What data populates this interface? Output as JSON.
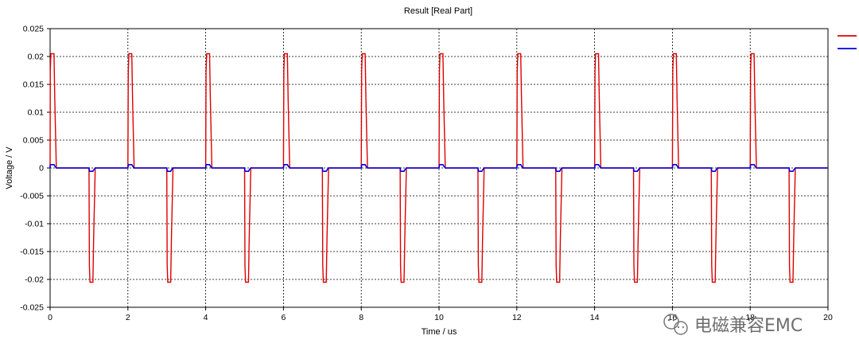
{
  "chart_data": {
    "type": "line",
    "title": "Result [Real Part]",
    "xlabel": "Time / us",
    "ylabel": "Voltage / V",
    "xlim": [
      0,
      20
    ],
    "ylim": [
      -0.025,
      0.025
    ],
    "x_ticks": [
      "0",
      "2",
      "4",
      "6",
      "8",
      "10",
      "12",
      "14",
      "16",
      "18",
      "20"
    ],
    "y_ticks": [
      "0.025",
      "0.02",
      "0.015",
      "0.01",
      "0.005",
      "0",
      "-0.005",
      "-0.01",
      "-0.015",
      "-0.02",
      "-0.025"
    ],
    "grid": true,
    "legend": "top-right",
    "series": [
      {
        "color": "#e00000",
        "pulse_period_us": 2,
        "positive_pulse_starts_us": [
          0,
          2,
          4,
          6,
          8,
          10,
          12,
          14,
          16,
          18
        ],
        "negative_pulse_starts_us": [
          1,
          3,
          5,
          7,
          9,
          11,
          13,
          15,
          17,
          19
        ],
        "pulse_width_us": 0.12,
        "amplitude": 0.0205,
        "baseline": 0
      },
      {
        "color": "#0000e0",
        "pulse_period_us": 2,
        "positive_pulse_starts_us": [
          0,
          2,
          4,
          6,
          8,
          10,
          12,
          14,
          16,
          18
        ],
        "negative_pulse_starts_us": [
          1,
          3,
          5,
          7,
          9,
          11,
          13,
          15,
          17,
          19
        ],
        "pulse_width_us": 0.12,
        "amplitude": 0.0006,
        "baseline": 0
      }
    ]
  },
  "watermark": {
    "text": "电磁兼容EMC",
    "icon": "wechat-icon"
  }
}
